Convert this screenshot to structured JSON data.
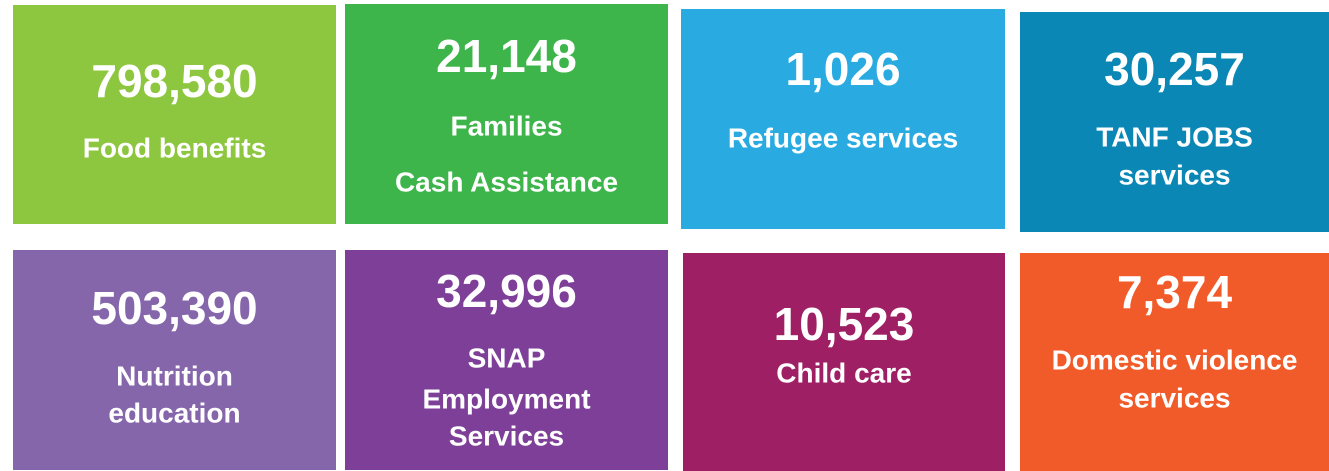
{
  "tiles": [
    {
      "number": "798,580",
      "label": [
        "Food benefits"
      ],
      "color": "#8dc63f"
    },
    {
      "number": "21,148",
      "label": [
        "Families",
        "Cash Assistance"
      ],
      "color": "#3db54a"
    },
    {
      "number": "1,026",
      "label": [
        "Refugee services"
      ],
      "color": "#29abe2"
    },
    {
      "number": "30,257",
      "label": [
        "TANF JOBS",
        "services"
      ],
      "color": "#0b87b5"
    },
    {
      "number": "503,390",
      "label": [
        "Nutrition",
        "education"
      ],
      "color": "#8566ab"
    },
    {
      "number": "32,996",
      "label": [
        "SNAP",
        "Employment",
        "Services"
      ],
      "color": "#7e3f98"
    },
    {
      "number": "10,523",
      "label": [
        "Child care"
      ],
      "color": "#9e1f63"
    },
    {
      "number": "7,374",
      "label": [
        "Domestic violence",
        "services"
      ],
      "color": "#f15a29"
    }
  ]
}
